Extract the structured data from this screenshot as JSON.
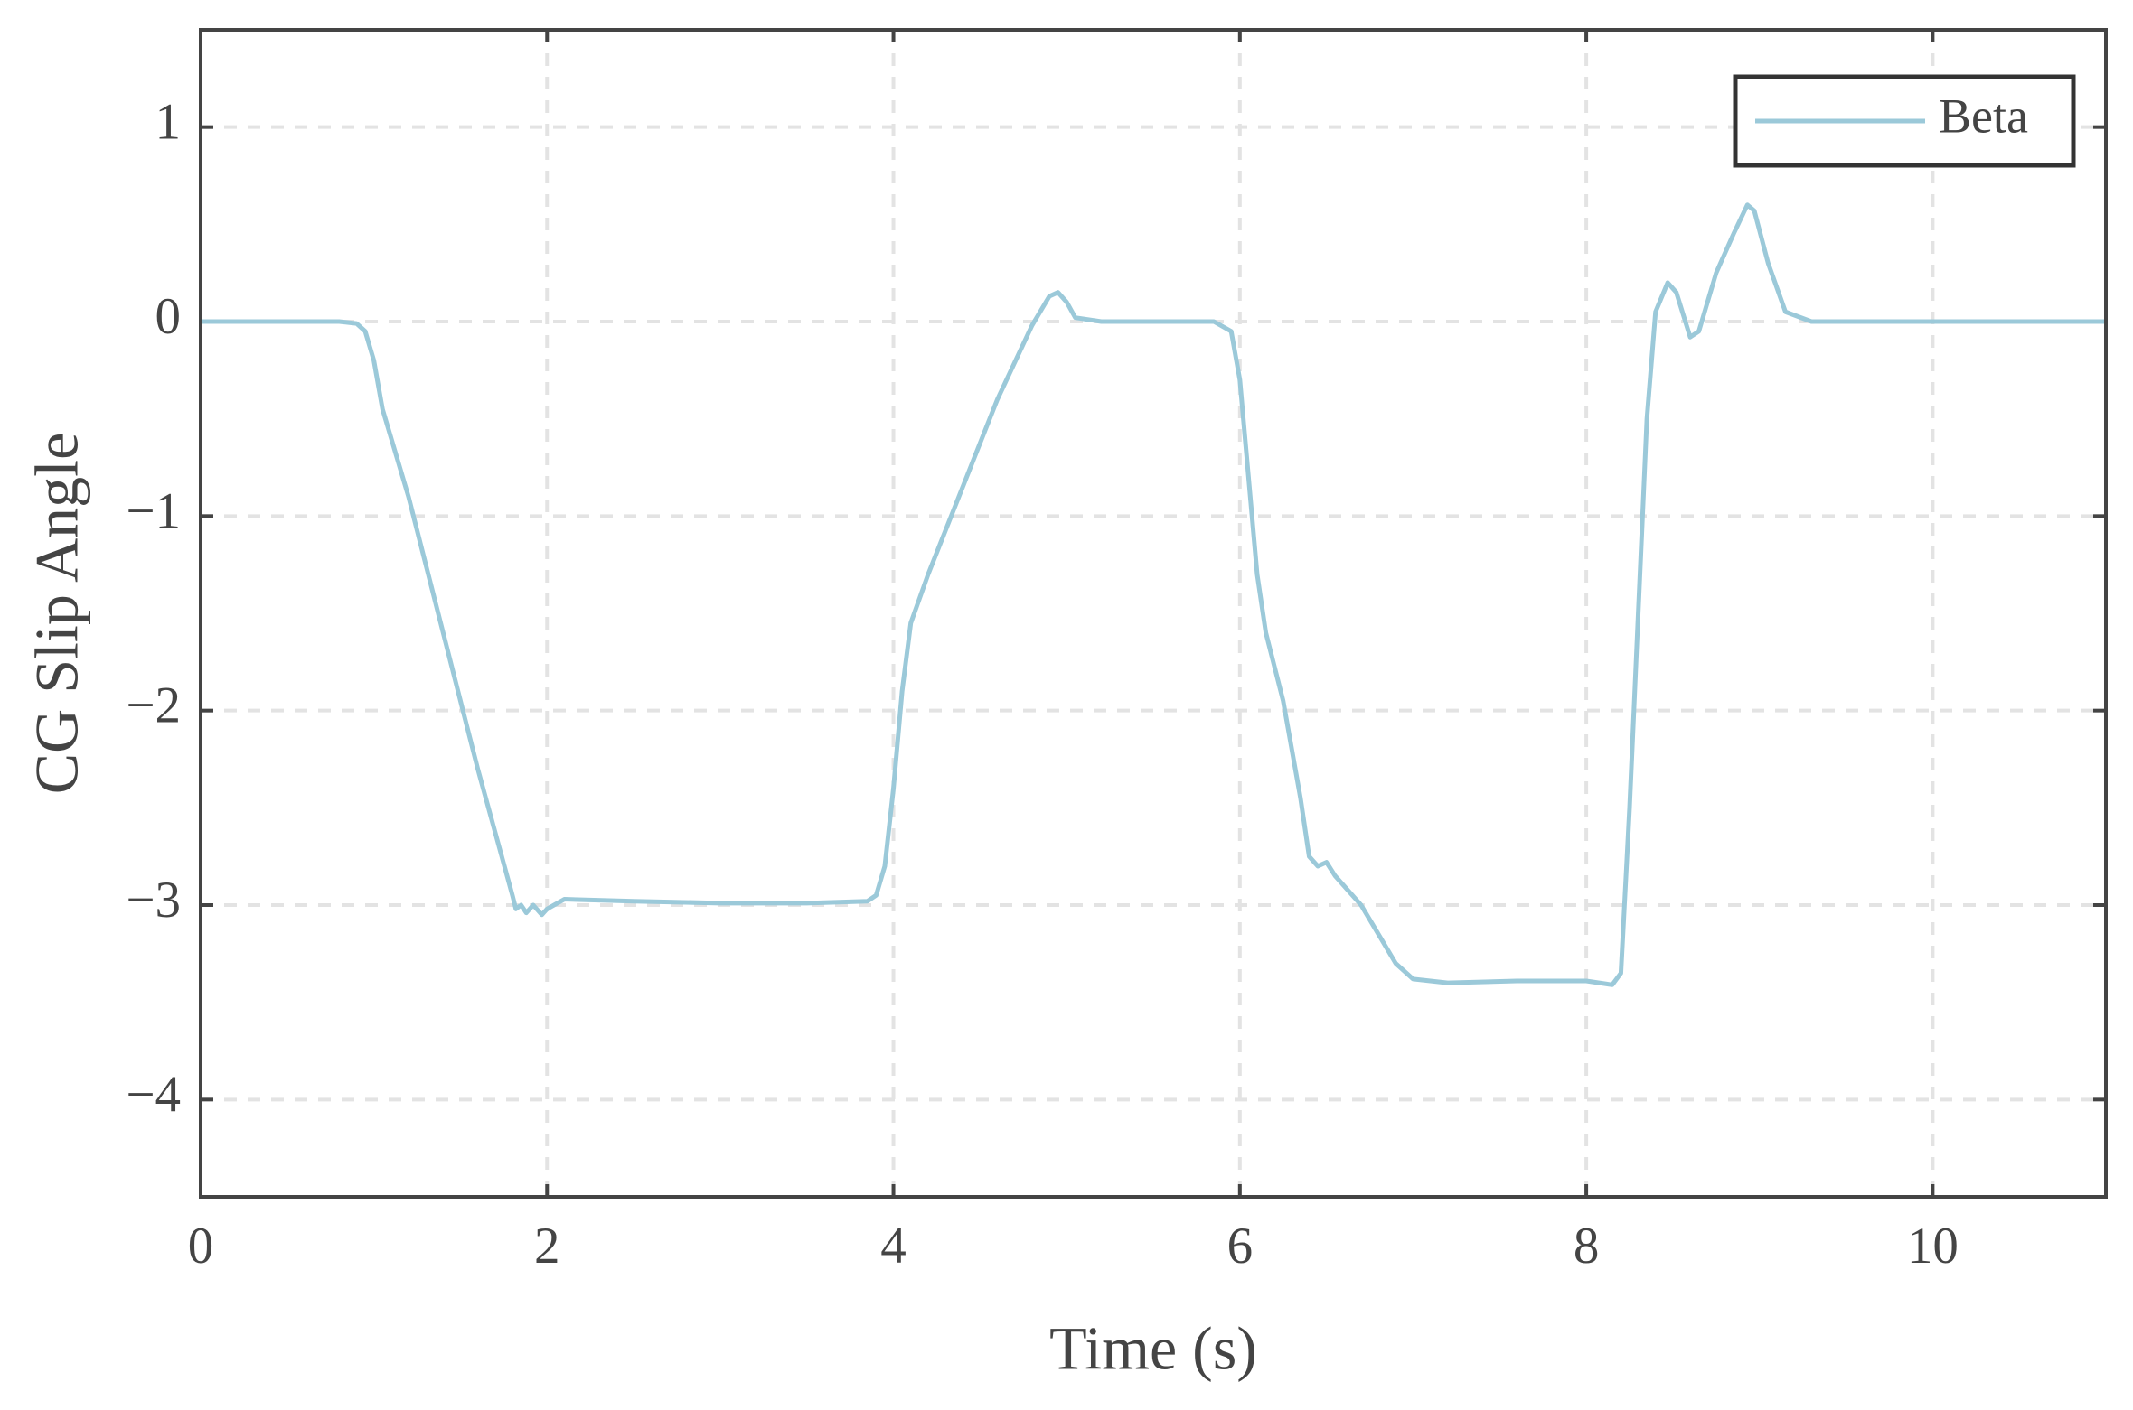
{
  "chart_data": {
    "type": "line",
    "x_label": "Time (s)",
    "y_label": "CG Slip Angle",
    "x": [
      0,
      0.8,
      0.9,
      0.95,
      1.0,
      1.05,
      1.1,
      1.2,
      1.4,
      1.6,
      1.8,
      1.82,
      1.85,
      1.88,
      1.92,
      1.97,
      2.0,
      2.1,
      2.5,
      3.0,
      3.5,
      3.85,
      3.9,
      3.95,
      4.0,
      4.05,
      4.1,
      4.2,
      4.4,
      4.6,
      4.8,
      4.9,
      4.95,
      5.0,
      5.05,
      5.2,
      5.85,
      5.95,
      6.0,
      6.05,
      6.1,
      6.15,
      6.25,
      6.35,
      6.4,
      6.45,
      6.5,
      6.55,
      6.6,
      6.7,
      6.8,
      6.9,
      7.0,
      7.2,
      7.6,
      8.0,
      8.15,
      8.2,
      8.25,
      8.3,
      8.35,
      8.4,
      8.47,
      8.52,
      8.6,
      8.65,
      8.75,
      8.85,
      8.93,
      8.97,
      9.05,
      9.15,
      9.3,
      11
    ],
    "series": [
      {
        "name": "Beta",
        "color": "#9bc9d9",
        "values": [
          0,
          0,
          -0.01,
          -0.05,
          -0.2,
          -0.45,
          -0.6,
          -0.9,
          -1.6,
          -2.3,
          -2.95,
          -3.02,
          -3.0,
          -3.04,
          -3.0,
          -3.05,
          -3.02,
          -2.97,
          -2.98,
          -2.99,
          -2.99,
          -2.98,
          -2.95,
          -2.8,
          -2.4,
          -1.9,
          -1.55,
          -1.3,
          -0.85,
          -0.4,
          -0.02,
          0.13,
          0.15,
          0.1,
          0.02,
          0,
          0,
          -0.05,
          -0.3,
          -0.8,
          -1.3,
          -1.6,
          -1.95,
          -2.45,
          -2.75,
          -2.8,
          -2.78,
          -2.85,
          -2.9,
          -3.0,
          -3.15,
          -3.3,
          -3.38,
          -3.4,
          -3.39,
          -3.39,
          -3.41,
          -3.35,
          -2.5,
          -1.5,
          -0.5,
          0.05,
          0.2,
          0.15,
          -0.08,
          -0.05,
          0.25,
          0.45,
          0.6,
          0.57,
          0.3,
          0.05,
          0,
          0
        ]
      }
    ],
    "xlim": [
      0,
      11
    ],
    "xticks": [
      0,
      2,
      4,
      6,
      8,
      10
    ],
    "ylim": [
      -4.5,
      1.5
    ],
    "yticks": [
      {
        "value": -4,
        "label": "−4"
      },
      {
        "value": -3,
        "label": "−3"
      },
      {
        "value": -2,
        "label": "−2"
      },
      {
        "value": -1,
        "label": "−1"
      },
      0,
      1
    ],
    "grid": true,
    "legend": "upper right"
  }
}
